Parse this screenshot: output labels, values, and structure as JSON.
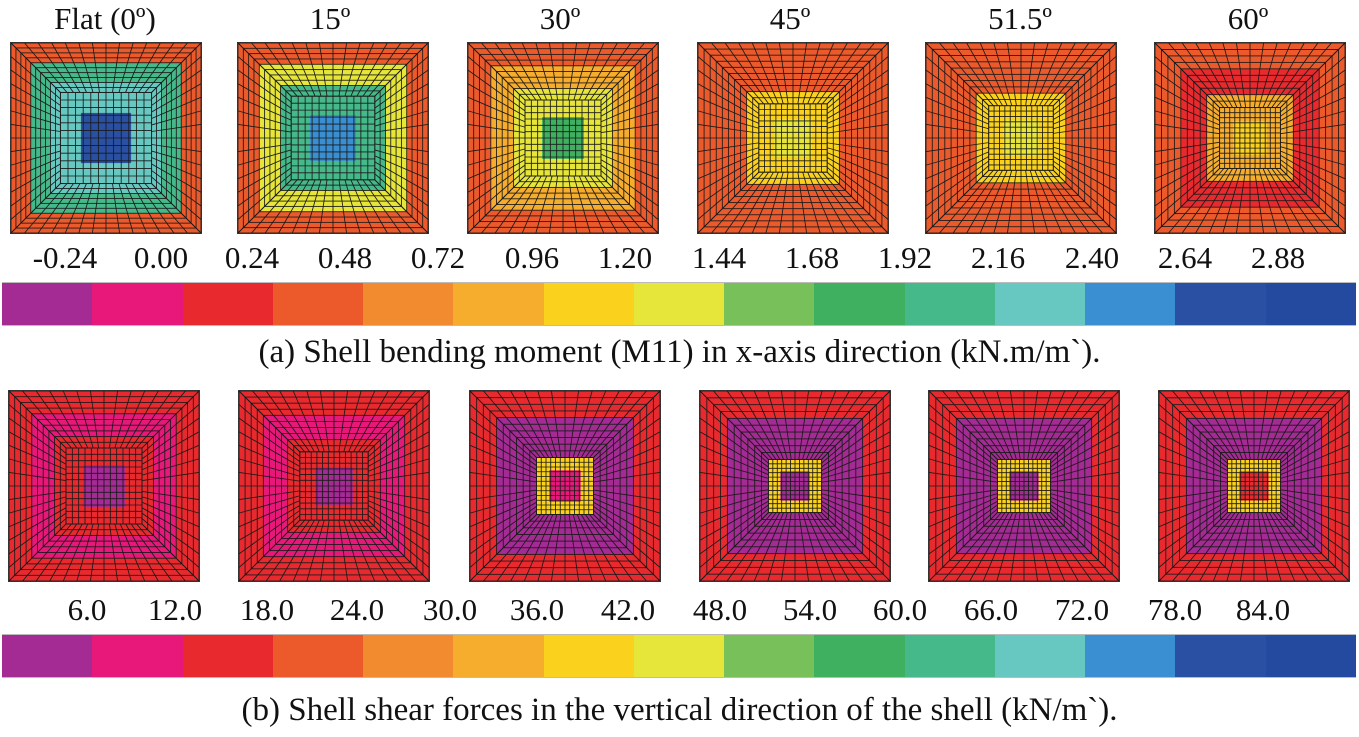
{
  "titles": [
    "Flat (0º)",
    "15º",
    "30º",
    "45º",
    "51.5º",
    "60º"
  ],
  "figure_a": {
    "legend_labels": [
      "-0.24",
      "0.00",
      "0.24",
      "0.48",
      "0.72",
      "0.96",
      "1.20",
      "1.44",
      "1.68",
      "1.92",
      "2.16",
      "2.40",
      "2.64",
      "2.88"
    ],
    "caption": "(a) Shell bending moment (M11) in x-axis direction (kN.m/m`)."
  },
  "figure_b": {
    "legend_labels": [
      "6.0",
      "12.0",
      "18.0",
      "24.0",
      "30.0",
      "36.0",
      "42.0",
      "48.0",
      "54.0",
      "60.0",
      "66.0",
      "72.0",
      "78.0",
      "84.0"
    ],
    "caption": "(b) Shell shear forces in the vertical direction of the shell (kN/m`)."
  },
  "colors": {
    "scale": [
      "#a42a94",
      "#e8187a",
      "#e82a2e",
      "#ec5a2c",
      "#f28a30",
      "#f6ac2c",
      "#fad21e",
      "#e6e53a",
      "#78c05a",
      "#3fb060",
      "#45b98a",
      "#66c8c0",
      "#3a8fd2",
      "#2a50a4",
      "#234a9e"
    ],
    "mesh_line": "#1a1a1a"
  },
  "panels_a": [
    {
      "center_color": "#2a50a4",
      "mid_color": "#66c8c0",
      "outer_color": "#45b98a"
    },
    {
      "center_color": "#3a8fd2",
      "mid_color": "#45b98a",
      "outer_color": "#e6e53a"
    },
    {
      "center_color": "#3fb060",
      "mid_color": "#e6e53a",
      "outer_color": "#f6ac2c"
    },
    {
      "center_color": "#e6e53a",
      "mid_color": "#fad21e",
      "outer_color": "#ec5a2c"
    },
    {
      "center_color": "#e6e53a",
      "mid_color": "#fad21e",
      "outer_color": "#ec5a2c"
    },
    {
      "center_color": "#fad21e",
      "mid_color": "#f6ac2c",
      "outer_color": "#e82a2e"
    }
  ],
  "panels_b": [
    {
      "center_color": "#a42a94",
      "inner_color": "#e82a2e",
      "edge_color": "#e82a2e"
    },
    {
      "center_color": "#a42a94",
      "inner_color": "#e82a2e",
      "edge_color": "#e82a2e"
    },
    {
      "center_color": "#e8187a",
      "inner_color": "#fad21e",
      "edge_color": "#e82a2e"
    },
    {
      "center_color": "#a42a94",
      "inner_color": "#fad21e",
      "edge_color": "#e82a2e"
    },
    {
      "center_color": "#a42a94",
      "inner_color": "#fad21e",
      "edge_color": "#e82a2e"
    },
    {
      "center_color": "#e82a2e",
      "inner_color": "#fad21e",
      "edge_color": "#e82a2e"
    }
  ]
}
